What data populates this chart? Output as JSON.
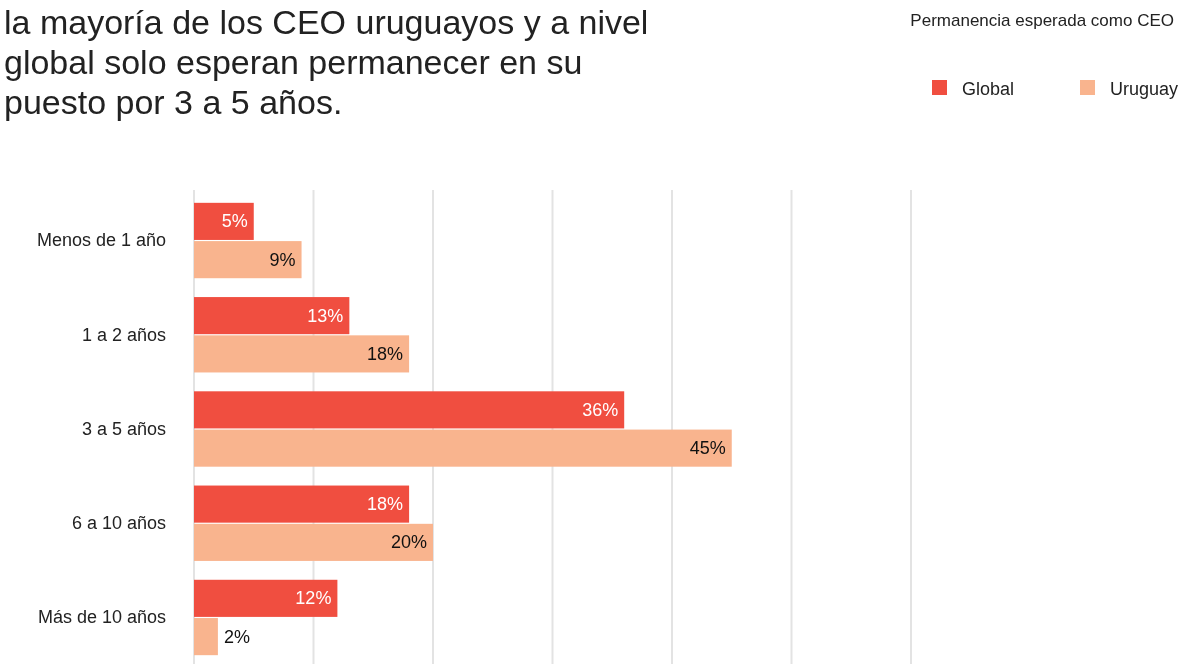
{
  "chart_data": {
    "type": "bar",
    "orientation": "horizontal",
    "title": "la mayoría de los CEO uruguayos y a nivel global solo esperan permanecer en su puesto por 3 a 5 años.",
    "legend_title": "Permanencia esperada como CEO",
    "categories": [
      "Menos de 1 año",
      "1 a 2 años",
      "3 a 5 años",
      "6 a 10 años",
      "Más de 10 años"
    ],
    "series": [
      {
        "name": "Global",
        "color": "#f04e40",
        "values": [
          5,
          13,
          36,
          18,
          12
        ],
        "value_labels": [
          "5%",
          "13%",
          "36%",
          "18%",
          "12%"
        ]
      },
      {
        "name": "Uruguay",
        "color": "#f9b48e",
        "values": [
          9,
          18,
          45,
          20,
          2
        ],
        "value_labels": [
          "9%",
          "18%",
          "45%",
          "20%",
          "2%"
        ]
      }
    ],
    "xlim": [
      0,
      60
    ],
    "xticks": [
      {
        "value": 0,
        "label": null
      },
      {
        "value": 10,
        "label": null
      },
      {
        "value": 20,
        "label": null
      },
      {
        "value": 30,
        "label": null
      },
      {
        "value": 40,
        "label": null
      },
      {
        "value": 50,
        "label": null
      },
      {
        "value": 60,
        "label": null
      }
    ],
    "grid": "x",
    "tick_labels": "y",
    "legend": "top right"
  }
}
